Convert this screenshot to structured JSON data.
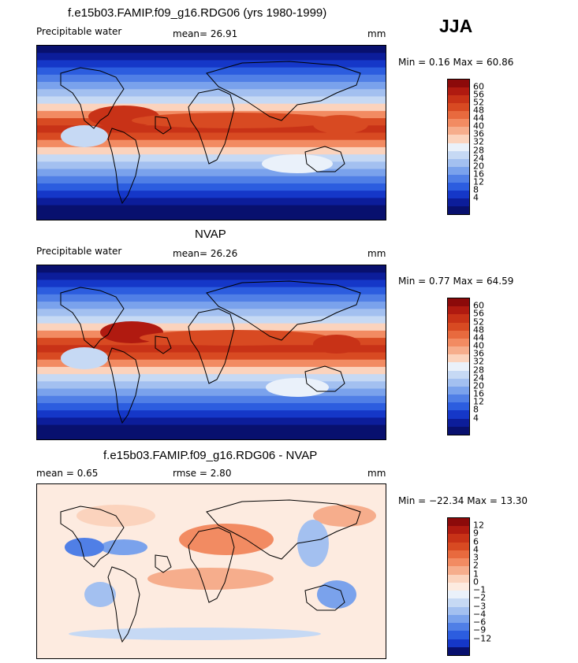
{
  "season": "JJA",
  "palettes": {
    "abs": [
      "#8c0a0a",
      "#b01a10",
      "#c83217",
      "#d84a22",
      "#e86a3e",
      "#f28b62",
      "#f6ad8c",
      "#fbd3bd",
      "#eaf1fa",
      "#c6d9f4",
      "#a3c0f0",
      "#7aa2ec",
      "#507fe6",
      "#2c5ddf",
      "#1537c8",
      "#0c1d9a",
      "#08106e"
    ],
    "diff": [
      "#8c0a0a",
      "#b01a10",
      "#c83217",
      "#d84a22",
      "#e86a3e",
      "#f28b62",
      "#f6ad8c",
      "#fbd3bd",
      "#fdebe0",
      "#eaf1fa",
      "#c6d9f4",
      "#a3c0f0",
      "#7aa2ec",
      "#507fe6",
      "#2c5ddf",
      "#1537c8",
      "#08106e"
    ]
  },
  "panels": [
    {
      "title": "f.e15b03.FAMIP.f09_g16.RDG06 (yrs 1980-1999)",
      "left_label": "Precipitable water",
      "mid_label": "mean=   26.91",
      "unit": "mm",
      "minmax": "Min =    0.16  Max =   60.86",
      "scale": "abs",
      "ticks": [
        "60",
        "56",
        "52",
        "48",
        "44",
        "40",
        "36",
        "32",
        "28",
        "24",
        "20",
        "16",
        "12",
        "8",
        "4"
      ]
    },
    {
      "title": "NVAP",
      "left_label": "Precipitable water",
      "mid_label": "mean=   26.26",
      "unit": "mm",
      "minmax": "Min =    0.77  Max =   64.59",
      "scale": "abs",
      "ticks": [
        "60",
        "56",
        "52",
        "48",
        "44",
        "40",
        "36",
        "32",
        "28",
        "24",
        "20",
        "16",
        "12",
        "8",
        "4"
      ]
    },
    {
      "title": "f.e15b03.FAMIP.f09_g16.RDG06 - NVAP",
      "left_label": "mean =    0.65",
      "mid_label": "rmse =    2.80",
      "unit": "mm",
      "minmax": "Min = −22.34  Max =   13.30",
      "scale": "diff",
      "ticks": [
        "12",
        "9",
        "6",
        "4",
        "3",
        "2",
        "1",
        "0",
        "−1",
        "−2",
        "−3",
        "−4",
        "−6",
        "−9",
        "−12"
      ]
    }
  ]
}
